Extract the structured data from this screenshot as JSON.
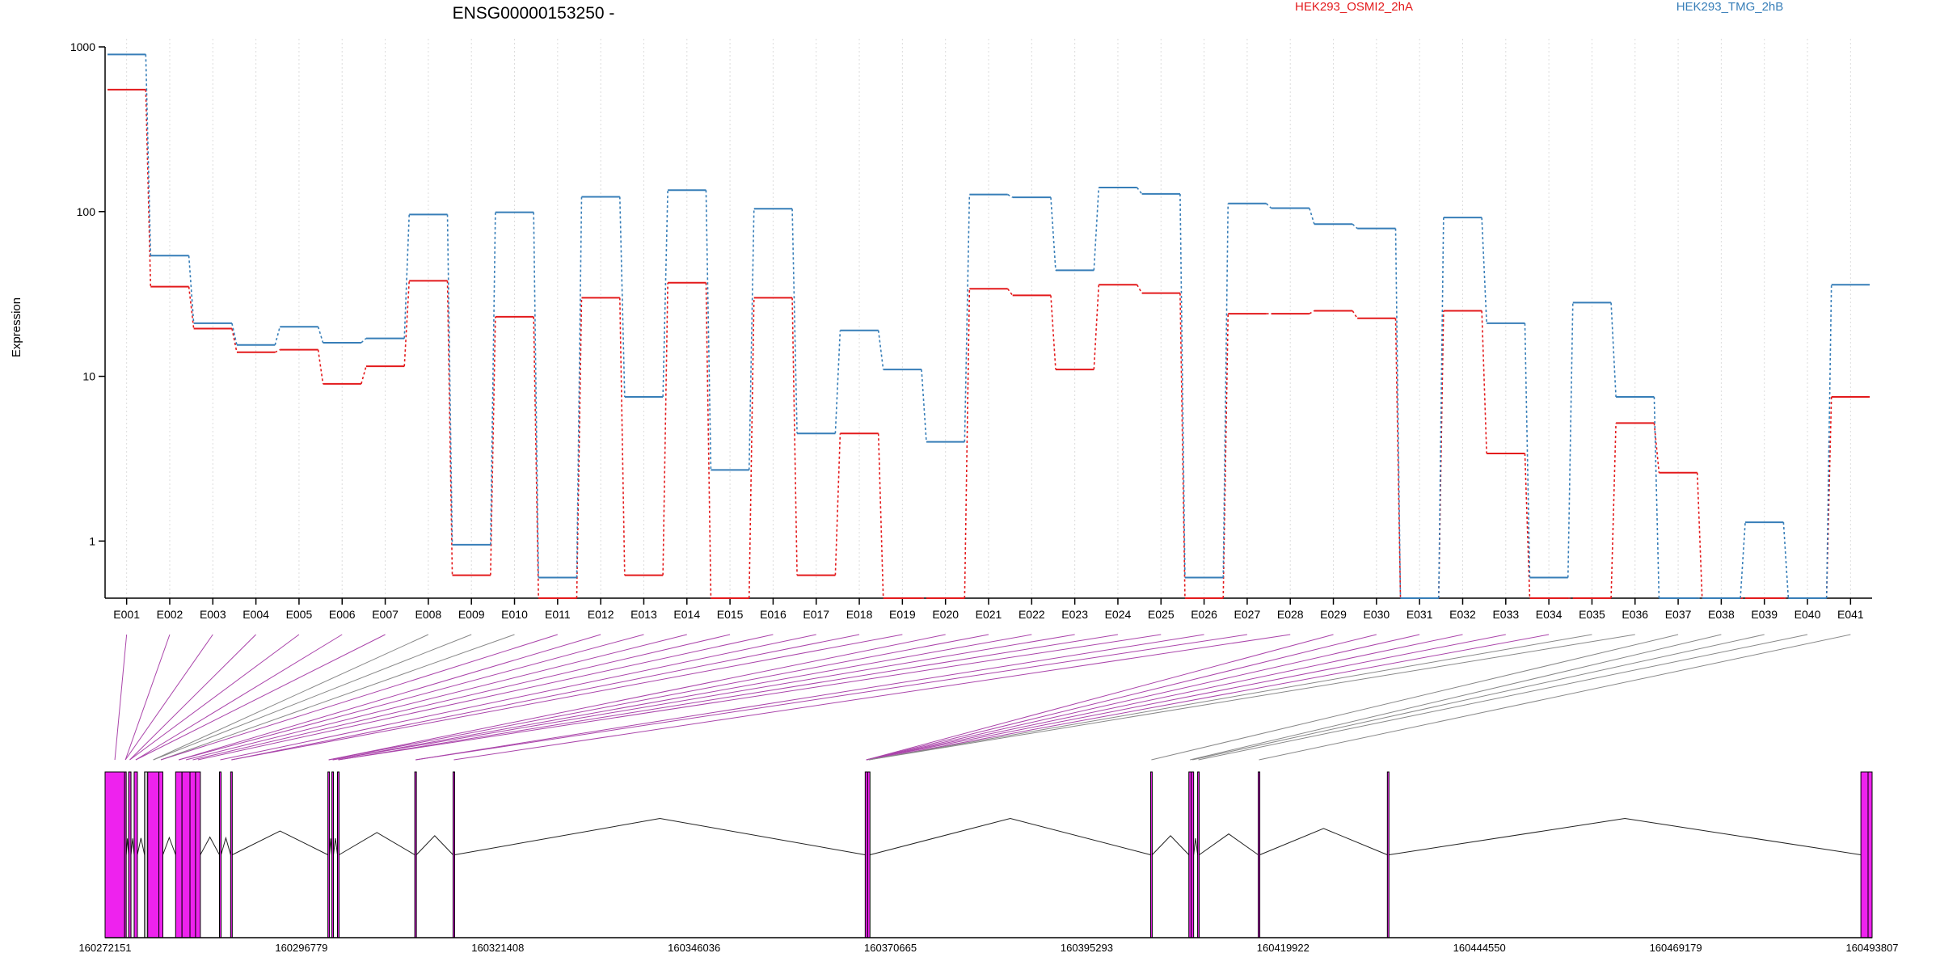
{
  "title": "ENSG00000153250 -",
  "ylabel": "Expression",
  "colors": {
    "sample_a": "#e31a1c",
    "sample_b": "#377eb8",
    "exon_fill": "#ee22ee",
    "exon_grey": "#cccccc",
    "link": "#aa44aa",
    "link_grey": "#888888"
  },
  "chart_data": {
    "type": "line",
    "title": "ENSG00000153250 -",
    "ylabel": "Expression",
    "yscale": "log",
    "ylim": [
      0.45,
      1000
    ],
    "yticks": [
      "1",
      "10",
      "100",
      "1000"
    ],
    "categories": [
      "E001",
      "E002",
      "E003",
      "E004",
      "E005",
      "E006",
      "E007",
      "E008",
      "E009",
      "E010",
      "E011",
      "E012",
      "E013",
      "E014",
      "E015",
      "E016",
      "E017",
      "E018",
      "E019",
      "E020",
      "E021",
      "E022",
      "E023",
      "E024",
      "E025",
      "E026",
      "E027",
      "E028",
      "E029",
      "E030",
      "E031",
      "E032",
      "E033",
      "E034",
      "E035",
      "E036",
      "E037",
      "E038",
      "E039",
      "E040",
      "E041"
    ],
    "series": [
      {
        "name": "HEK293_OSMI2_2hA",
        "color": "#e31a1c",
        "values": [
          550,
          35,
          19.5,
          14,
          14.5,
          9,
          11.5,
          38,
          0.62,
          23,
          0.45,
          30,
          0.62,
          37,
          0.45,
          30,
          0.62,
          4.5,
          0.45,
          0.45,
          34,
          31,
          11,
          36,
          32,
          0.45,
          24,
          24,
          25,
          22.5,
          0.45,
          25,
          3.4,
          0.45,
          0.45,
          5.2,
          2.6,
          0.45,
          0.45,
          0.45,
          7.5
        ]
      },
      {
        "name": "HEK293_TMG_2hB",
        "color": "#377eb8",
        "values": [
          900,
          54,
          21,
          15.5,
          20,
          16,
          17,
          96,
          0.95,
          99,
          0.6,
          123,
          7.5,
          135,
          2.7,
          104,
          4.5,
          19,
          11,
          4,
          127,
          122,
          44,
          140,
          128,
          0.6,
          112,
          105,
          84,
          79,
          0.45,
          92,
          21,
          0.6,
          28,
          7.5,
          0.45,
          0.45,
          1.3,
          0.45,
          36
        ]
      }
    ],
    "genome_coords": [
      "160272151",
      "160296779",
      "160321408",
      "160346036",
      "160370665",
      "160395293",
      "160419922",
      "160444550",
      "160469179",
      "160493807"
    ],
    "genome_range": [
      160272151,
      160493807
    ]
  },
  "exons": [
    [
      160272151,
      160274600
    ],
    [
      160274600,
      160274800
    ],
    [
      160275100,
      160275400
    ],
    [
      160275800,
      160276200
    ],
    [
      160277100,
      160277500
    ],
    [
      160277500,
      160278900
    ],
    [
      160278900,
      160279400
    ],
    [
      160281000,
      160281800
    ],
    [
      160281800,
      160282800
    ],
    [
      160282800,
      160283500
    ],
    [
      160283500,
      160284100
    ],
    [
      160286500,
      160286700
    ],
    [
      160287900,
      160288100
    ],
    [
      160300100,
      160300300
    ],
    [
      160300600,
      160300800
    ],
    [
      160301300,
      160301500
    ],
    [
      160311000,
      160311200
    ],
    [
      160315800,
      160316000
    ],
    [
      160367500,
      160367800
    ],
    [
      160367800,
      160368100
    ],
    [
      160403300,
      160403500
    ],
    [
      160408100,
      160408400
    ],
    [
      160408400,
      160408700
    ],
    [
      160409200,
      160409400
    ],
    [
      160416800,
      160417000
    ],
    [
      160433000,
      160433200
    ],
    [
      160492400,
      160493300
    ],
    [
      160493300,
      160493807
    ]
  ],
  "exon_grey": [
    4
  ],
  "exon_link_exon": [
    0,
    1,
    1,
    2,
    2,
    3,
    3,
    5,
    5,
    6,
    6,
    7,
    7,
    8,
    9,
    10,
    11,
    12,
    12,
    13,
    13,
    14,
    14,
    15,
    15,
    16,
    16,
    17,
    18,
    18,
    18,
    18,
    18,
    19,
    19,
    19,
    20,
    21,
    22,
    23,
    24,
    26,
    27
  ],
  "grey_links": [
    7,
    8,
    9,
    34,
    35,
    36,
    37,
    38,
    39,
    40
  ]
}
